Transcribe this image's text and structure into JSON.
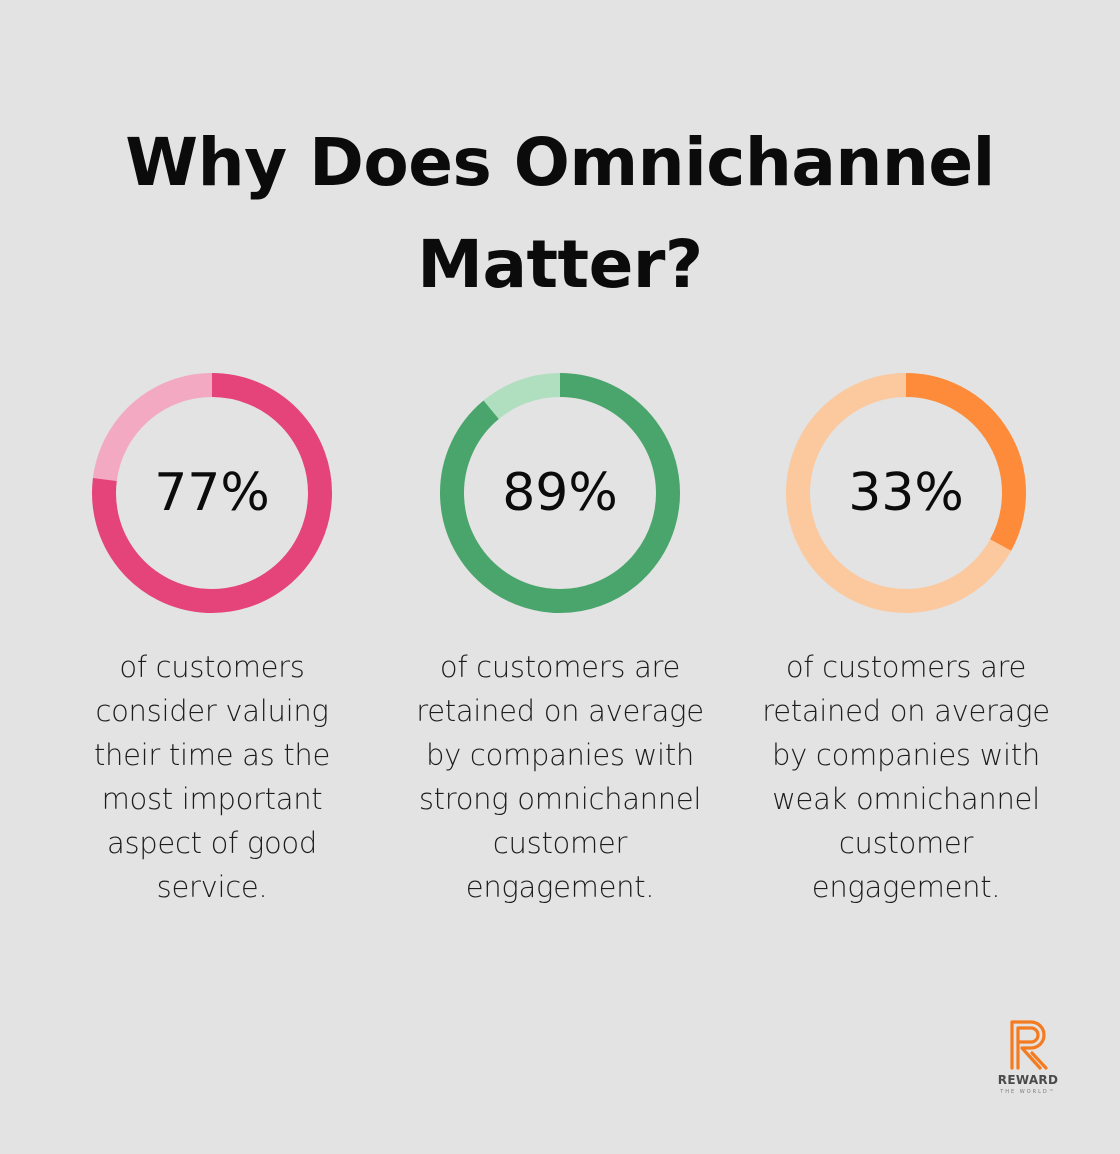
{
  "title": "Why Does Omnichannel Matter?",
  "chart_data": [
    {
      "type": "pie",
      "variant": "donut",
      "value": 77,
      "label": "77%",
      "description": "of customers consider valuing their time as the most important aspect of good service.",
      "colors": {
        "filled": "#e4447a",
        "remainder": "#f2a9c1"
      }
    },
    {
      "type": "pie",
      "variant": "donut",
      "value": 89,
      "label": "89%",
      "description": "of customers are retained on average by companies with strong omnichannel customer engagement.",
      "colors": {
        "filled": "#4aa56c",
        "remainder": "#b0dfc0"
      }
    },
    {
      "type": "pie",
      "variant": "donut",
      "value": 33,
      "label": "33%",
      "description": "of customers are retained on average by companies with weak omnichannel customer engagement.",
      "colors": {
        "filled": "#fd8b39",
        "remainder": "#fcc89e"
      }
    }
  ],
  "logo": {
    "brand": "REWARD",
    "tagline": "THE WORLD™",
    "color": "#f47b20",
    "icon": "reward-r-logo-icon"
  }
}
